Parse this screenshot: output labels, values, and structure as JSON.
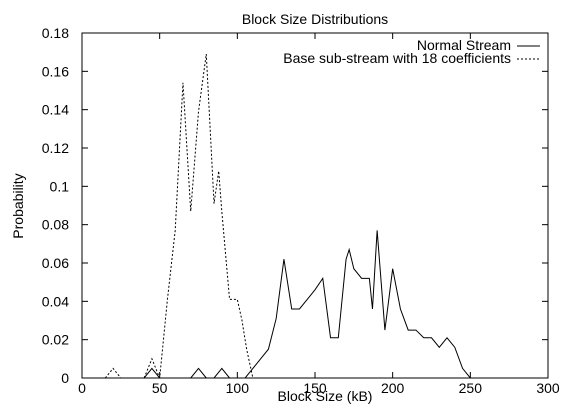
{
  "chart_data": {
    "type": "line",
    "title": "Block Size Distributions",
    "xlabel": "Block Size (kB)",
    "ylabel": "Probability",
    "xlim": [
      0,
      300
    ],
    "ylim": [
      0,
      0.18
    ],
    "xticks": [
      0,
      50,
      100,
      150,
      200,
      250,
      300
    ],
    "yticks": [
      0,
      0.02,
      0.04,
      0.06,
      0.08,
      0.1,
      0.12,
      0.14,
      0.16,
      0.18
    ],
    "xtick_labels": [
      "0",
      "50",
      "100",
      "150",
      "200",
      "250",
      "300"
    ],
    "ytick_labels": [
      "0",
      "0.02",
      "0.04",
      "0.06",
      "0.08",
      "0.1",
      "0.12",
      "0.14",
      "0.16",
      "0.18"
    ],
    "grid": false,
    "legend_position": "top-right",
    "series": [
      {
        "name": "Normal Stream",
        "style": "solid",
        "color": "#000000",
        "points": [
          [
            0,
            0
          ],
          [
            40,
            0
          ],
          [
            45,
            0.005
          ],
          [
            50,
            0
          ],
          [
            70,
            0
          ],
          [
            75,
            0.005
          ],
          [
            80,
            0
          ],
          [
            85,
            0
          ],
          [
            90,
            0.005
          ],
          [
            95,
            0
          ],
          [
            100,
            0
          ],
          [
            105,
            0
          ],
          [
            110,
            0.005
          ],
          [
            115,
            0.01
          ],
          [
            120,
            0.015
          ],
          [
            125,
            0.031
          ],
          [
            130,
            0.062
          ],
          [
            135,
            0.036
          ],
          [
            140,
            0.036
          ],
          [
            145,
            0.041
          ],
          [
            150,
            0.046
          ],
          [
            155,
            0.052
          ],
          [
            160,
            0.021
          ],
          [
            165,
            0.021
          ],
          [
            170,
            0.062
          ],
          [
            172,
            0.067
          ],
          [
            175,
            0.057
          ],
          [
            180,
            0.052
          ],
          [
            185,
            0.052
          ],
          [
            187,
            0.036
          ],
          [
            190,
            0.077
          ],
          [
            195,
            0.025
          ],
          [
            200,
            0.057
          ],
          [
            205,
            0.036
          ],
          [
            210,
            0.025
          ],
          [
            215,
            0.025
          ],
          [
            220,
            0.021
          ],
          [
            225,
            0.021
          ],
          [
            230,
            0.016
          ],
          [
            235,
            0.021
          ],
          [
            240,
            0.016
          ],
          [
            245,
            0.005
          ],
          [
            250,
            0
          ],
          [
            300,
            0
          ]
        ]
      },
      {
        "name": "Base sub-stream with 18 coefficients",
        "style": "dashed",
        "color": "#000000",
        "points": [
          [
            15,
            0
          ],
          [
            20,
            0.005
          ],
          [
            25,
            0
          ],
          [
            40,
            0
          ],
          [
            45,
            0.01
          ],
          [
            50,
            0
          ],
          [
            55,
            0.041
          ],
          [
            60,
            0.077
          ],
          [
            65,
            0.154
          ],
          [
            70,
            0.087
          ],
          [
            75,
            0.139
          ],
          [
            80,
            0.169
          ],
          [
            85,
            0.091
          ],
          [
            88,
            0.108
          ],
          [
            90,
            0.087
          ],
          [
            95,
            0.041
          ],
          [
            100,
            0.041
          ],
          [
            103,
            0.03
          ],
          [
            106,
            0.015
          ],
          [
            110,
            0
          ],
          [
            115,
            0
          ]
        ]
      }
    ]
  }
}
